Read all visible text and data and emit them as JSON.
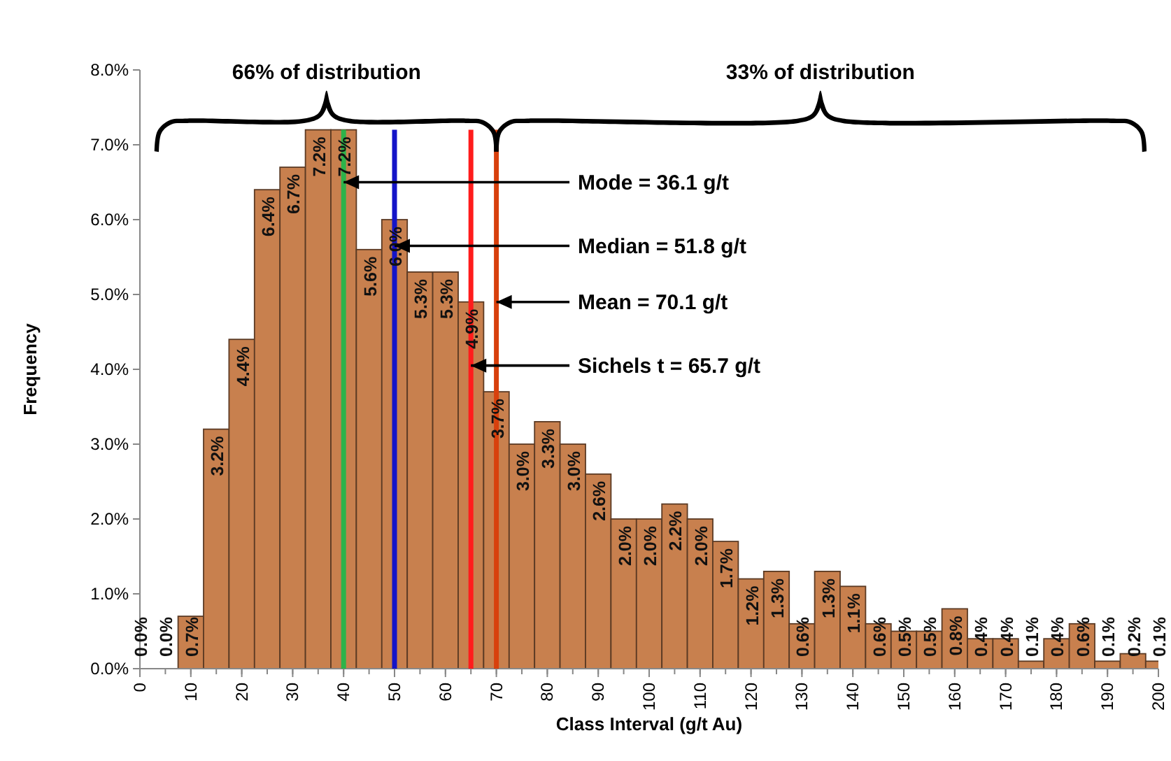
{
  "chart_data": {
    "type": "bar",
    "xlabel": "Class Interval (g/t Au)",
    "ylabel": "Frequency",
    "x": [
      0,
      5,
      10,
      15,
      20,
      25,
      30,
      35,
      40,
      45,
      50,
      55,
      60,
      65,
      70,
      75,
      80,
      85,
      90,
      95,
      100,
      105,
      110,
      115,
      120,
      125,
      130,
      135,
      140,
      145,
      150,
      155,
      160,
      165,
      170,
      175,
      180,
      185,
      190,
      195,
      200
    ],
    "values": [
      0.0,
      0.0,
      0.7,
      3.2,
      4.4,
      6.4,
      6.7,
      7.2,
      7.2,
      5.6,
      6.0,
      5.3,
      5.3,
      4.9,
      3.7,
      3.0,
      3.3,
      3.0,
      2.6,
      2.0,
      2.0,
      2.2,
      2.0,
      1.7,
      1.2,
      1.3,
      0.6,
      1.3,
      1.1,
      0.6,
      0.5,
      0.5,
      0.8,
      0.4,
      0.4,
      0.1,
      0.4,
      0.6,
      0.1,
      0.2,
      0.1
    ],
    "value_labels": [
      "0.0%",
      "0.0%",
      "0.7%",
      "3.2%",
      "4.4%",
      "6.4%",
      "6.7%",
      "7.2%",
      "7.2%",
      "5.6%",
      "6.0%",
      "5.3%",
      "5.3%",
      "4.9%",
      "3.7%",
      "3.0%",
      "3.3%",
      "3.0%",
      "2.6%",
      "2.0%",
      "2.0%",
      "2.2%",
      "2.0%",
      "1.7%",
      "1.2%",
      "1.3%",
      "0.6%",
      "1.3%",
      "1.1%",
      "0.6%",
      "0.5%",
      "0.5%",
      "0.8%",
      "0.4%",
      "0.4%",
      "0.1%",
      "0.4%",
      "0.6%",
      "0.1%",
      "0.2%",
      "0.1%"
    ],
    "color": "#c8804e",
    "xlim": [
      0,
      200
    ],
    "xticks": [
      0,
      10,
      20,
      30,
      40,
      50,
      60,
      70,
      80,
      90,
      100,
      110,
      120,
      130,
      140,
      150,
      160,
      170,
      180,
      190,
      200
    ],
    "ylim": [
      0,
      8
    ],
    "yticks": [
      {
        "value": 0,
        "label": "0.0%"
      },
      {
        "value": 1,
        "label": "1.0%"
      },
      {
        "value": 2,
        "label": "2.0%"
      },
      {
        "value": 3,
        "label": "3.0%"
      },
      {
        "value": 4,
        "label": "4.0%"
      },
      {
        "value": 5,
        "label": "5.0%"
      },
      {
        "value": 6,
        "label": "6.0%"
      },
      {
        "value": 7,
        "label": "7.0%"
      },
      {
        "value": 8,
        "label": "8.0%"
      }
    ],
    "ref_lines": [
      {
        "axis": "x",
        "value": 40,
        "color": "#2db34a"
      },
      {
        "axis": "x",
        "value": 50,
        "color": "#1414c8"
      },
      {
        "axis": "x",
        "value": 70,
        "color": "#d8400c"
      },
      {
        "axis": "x",
        "value": 65,
        "color": "#ff1c1c"
      }
    ],
    "annotations": [
      "66% of distribution",
      "33% of distribution",
      {
        "text": "Mode =  36.1 g/t",
        "x": 40,
        "y": 6.5
      },
      {
        "text": "Median = 51.8 g/t",
        "x": 50,
        "y": 5.65
      },
      {
        "text": "Mean =  70.1 g/t",
        "x": 70,
        "y": 4.9
      },
      {
        "text": "Sichels t =  65.7 g/t",
        "x": 65,
        "y": 4.05
      }
    ]
  }
}
